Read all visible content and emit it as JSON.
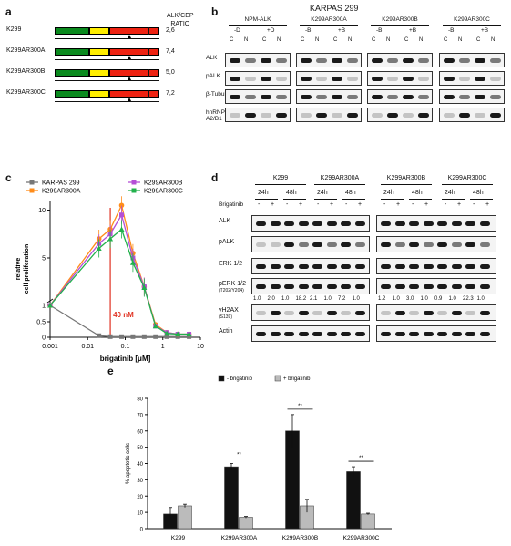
{
  "panels": {
    "a": "a",
    "b": "b",
    "c": "c",
    "d": "d",
    "e": "e"
  },
  "panel_a": {
    "ratio_header": "ALK/CEP\nRATIO",
    "rows": [
      {
        "label": "K299",
        "ratio": "2,6"
      },
      {
        "label": "K299AR300A",
        "ratio": "7,4"
      },
      {
        "label": "K299AR300B",
        "ratio": "5,0"
      },
      {
        "label": "K299AR300C",
        "ratio": "7,2"
      }
    ],
    "colors": {
      "green": "#0a8a1e",
      "yellow": "#ffee00",
      "red": "#ee2211"
    }
  },
  "panel_b": {
    "title": "KARPAS 299",
    "groups": [
      {
        "name": "NPM-ALK",
        "conds": [
          "-D",
          "+D"
        ]
      },
      {
        "name": "K299AR300A",
        "conds": [
          "-B",
          "+B"
        ]
      },
      {
        "name": "K299AR300B",
        "conds": [
          "-B",
          "+B"
        ]
      },
      {
        "name": "K299AR300C",
        "conds": [
          "-B",
          "+B"
        ]
      }
    ],
    "fractions": [
      "C",
      "N"
    ],
    "rows": [
      "ALK",
      "pALK",
      "β-Tubulin",
      "hnRNP\nA2/B1"
    ]
  },
  "panel_c": {
    "ylabel": "relative\ncell proliferation",
    "xlabel": "brigatinib [μM]",
    "annotation": "40 nM",
    "xticks": [
      "0.001",
      "0.01",
      "0.1",
      "1",
      "10"
    ],
    "yticks": [
      "0",
      "0.5",
      "1",
      "5",
      "10"
    ]
  },
  "chart_data": [
    {
      "type": "line",
      "xlabel": "brigatinib [μM]",
      "ylabel": "relative cell proliferation",
      "x_scale": "log",
      "x": [
        0.001,
        0.02,
        0.04,
        0.08,
        0.16,
        0.32,
        0.64,
        1.28,
        2.5,
        5
      ],
      "series": [
        {
          "name": "KARPAS 299",
          "color": "#777777",
          "values": [
            1,
            0.05,
            0.02,
            0.02,
            0.02,
            0.02,
            0.02,
            0.02,
            0.02,
            0.02
          ]
        },
        {
          "name": "K299AR300A",
          "color": "#ff8c1a",
          "values": [
            1,
            7,
            8,
            10.5,
            5.5,
            2,
            0.4,
            0.15,
            0.1,
            0.1
          ]
        },
        {
          "name": "K299AR300B",
          "color": "#b44fd6",
          "values": [
            1,
            6.5,
            7.5,
            9.5,
            5,
            2,
            0.35,
            0.15,
            0.1,
            0.1
          ]
        },
        {
          "name": "K299AR300C",
          "color": "#22b14c",
          "values": [
            1,
            6,
            7,
            8,
            4.5,
            1.9,
            0.35,
            0.12,
            0.1,
            0.1
          ]
        }
      ],
      "legend": "top"
    },
    {
      "type": "bar",
      "ylabel": "% apoptotic cells",
      "categories": [
        "K299",
        "K299AR300A",
        "K299AR300B",
        "K299AR300C"
      ],
      "series": [
        {
          "name": "- brigatinib",
          "color": "#111111",
          "values": [
            9,
            38,
            60,
            35
          ],
          "errors": [
            4,
            2,
            10,
            3
          ]
        },
        {
          "name": "+ brigatinib",
          "color": "#bbbbbb",
          "values": [
            14,
            7,
            14,
            9
          ],
          "errors": [
            1,
            0.5,
            4,
            0.5
          ]
        }
      ],
      "ylim": [
        0,
        80
      ],
      "yticks": [
        "0",
        "10",
        "20",
        "30",
        "40",
        "50",
        "60",
        "70",
        "80"
      ],
      "significance": "**"
    }
  ],
  "panel_d": {
    "groups": [
      "K299",
      "K299AR300A",
      "K299AR300B",
      "K299AR300C"
    ],
    "times": [
      "24h",
      "48h"
    ],
    "treatment_label": "Brigatinib",
    "signs": [
      "-",
      "+"
    ],
    "rows": [
      "ALK",
      "pALK",
      "ERK 1/2",
      "pERK 1/2",
      "γH2AX",
      "Actin"
    ],
    "row_subs": {
      "pERK 1/2": "(T202/Y204)",
      "γH2AX": "(S139)"
    },
    "quant_left": [
      "1.0",
      "2.0",
      "1.0",
      "18.2",
      "2.1",
      "1.0",
      "7.2",
      "1.0"
    ],
    "quant_right": [
      "1.2",
      "1.0",
      "3.0",
      "1.0",
      "0.9",
      "1.0",
      "22.3",
      "1.0"
    ]
  }
}
